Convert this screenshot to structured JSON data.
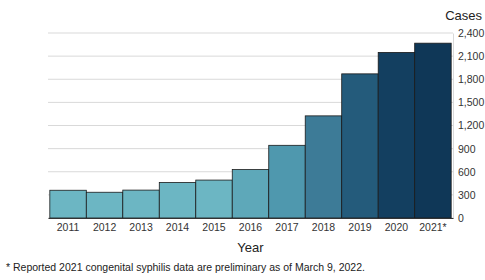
{
  "chart_data": {
    "type": "bar",
    "x_label": "Year",
    "y_label": "Cases",
    "annotations": [
      "* Reported 2021 congenital syphilis data are preliminary as of March 9, 2022."
    ],
    "categories": [
      "2011",
      "2012",
      "2013",
      "2014",
      "2015",
      "2016",
      "2017",
      "2018",
      "2019",
      "2020",
      "2021*"
    ],
    "values": [
      360,
      334,
      362,
      461,
      492,
      628,
      943,
      1325,
      1870,
      2148,
      2268
    ],
    "colors": [
      "#6cb6c3",
      "#6cb6c3",
      "#6cb6c3",
      "#6cb6c3",
      "#6cb6c3",
      "#5ea8b9",
      "#4f98ae",
      "#3d7b97",
      "#245b7b",
      "#133f60",
      "#0f3757"
    ],
    "ylim": [
      0,
      2400
    ],
    "yticks": [
      0,
      300,
      600,
      900,
      {
        "value": 1200,
        "label": "1,200"
      },
      {
        "value": 1500,
        "label": "1,500"
      },
      {
        "value": 1800,
        "label": "1,800"
      },
      {
        "value": 2100,
        "label": "2,100"
      },
      {
        "value": 2400,
        "label": "2,400"
      }
    ],
    "grid": true
  }
}
